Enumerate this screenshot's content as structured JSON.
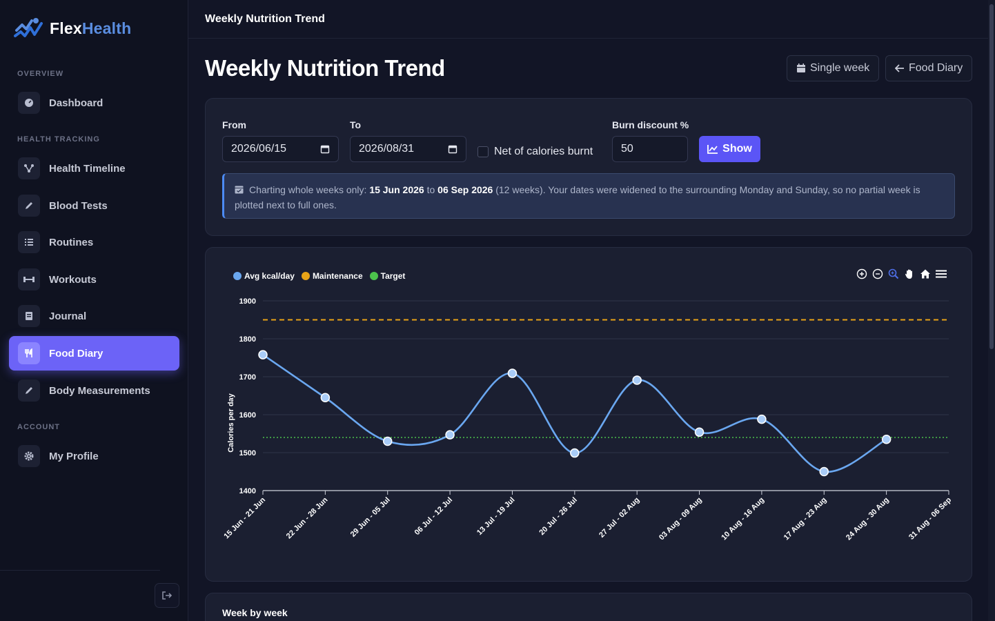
{
  "brand": {
    "name_part1": "Flex",
    "name_part2": "Health"
  },
  "topbar": {
    "title": "Weekly Nutrition Trend"
  },
  "sidebar": {
    "sections": [
      {
        "label": "OVERVIEW"
      },
      {
        "label": "HEALTH TRACKING"
      },
      {
        "label": "ACCOUNT"
      }
    ],
    "items": [
      {
        "label": "Dashboard",
        "icon": "gauge-icon"
      },
      {
        "label": "Health Timeline",
        "icon": "timeline-icon"
      },
      {
        "label": "Blood Tests",
        "icon": "pencil-icon"
      },
      {
        "label": "Routines",
        "icon": "list-check-icon"
      },
      {
        "label": "Workouts",
        "icon": "dumbbell-icon"
      },
      {
        "label": "Journal",
        "icon": "book-icon"
      },
      {
        "label": "Food Diary",
        "icon": "utensils-icon",
        "active": true
      },
      {
        "label": "Body Measurements",
        "icon": "pencil-icon"
      },
      {
        "label": "My Profile",
        "icon": "gear-icon"
      }
    ]
  },
  "main": {
    "title": "Weekly Nutrition Trend",
    "buttons": {
      "single_week": "Single week",
      "food_diary": "Food Diary"
    }
  },
  "filters": {
    "from_label": "From",
    "from_value": "2026/06/15",
    "to_label": "To",
    "to_value": "2026/08/31",
    "net_label": "Net of calories burnt",
    "net_checked": false,
    "burn_label": "Burn discount %",
    "burn_value": "50",
    "show_label": "Show"
  },
  "info": {
    "prefix": "Charting whole weeks only: ",
    "start": "15 Jun 2026",
    "mid": " to ",
    "end": "06 Sep 2026",
    "suffix": " (12 weeks). Your dates were widened to the surrounding Monday and Sunday, so no partial week is plotted next to full ones."
  },
  "chart_data": {
    "type": "line",
    "categories": [
      "15 Jun - 21 Jun",
      "22 Jun - 28 Jun",
      "29 Jun - 05 Jul",
      "06 Jul - 12 Jul",
      "13 Jul - 19 Jul",
      "20 Jul - 26 Jul",
      "27 Jul - 02 Aug",
      "03 Aug - 09 Aug",
      "10 Aug - 16 Aug",
      "17 Aug - 23 Aug",
      "24 Aug - 30 Aug",
      "31 Aug - 06 Sep"
    ],
    "series": [
      {
        "name": "Avg kcal/day",
        "color": "#6aa7f0",
        "values": [
          1758,
          1645,
          1530,
          1547,
          1709,
          1499,
          1691,
          1554,
          1588,
          1450,
          1535,
          null
        ]
      },
      {
        "name": "Maintenance",
        "color": "#e8a317",
        "constant": 1850,
        "style": "dashed"
      },
      {
        "name": "Target",
        "color": "#4cc24c",
        "constant": 1540,
        "style": "dotted"
      }
    ],
    "ylabel": "Calories per day",
    "ylim": [
      1400,
      1900
    ],
    "yticks": [
      1400,
      1500,
      1600,
      1700,
      1800,
      1900
    ],
    "grid": true,
    "legend_position": "top-left"
  },
  "chart_toolbar": [
    "zoom-in-icon",
    "zoom-out-icon",
    "zoom-select-icon",
    "pan-hand-icon",
    "home-icon",
    "menu-icon"
  ],
  "week_section": {
    "title": "Week by week"
  }
}
